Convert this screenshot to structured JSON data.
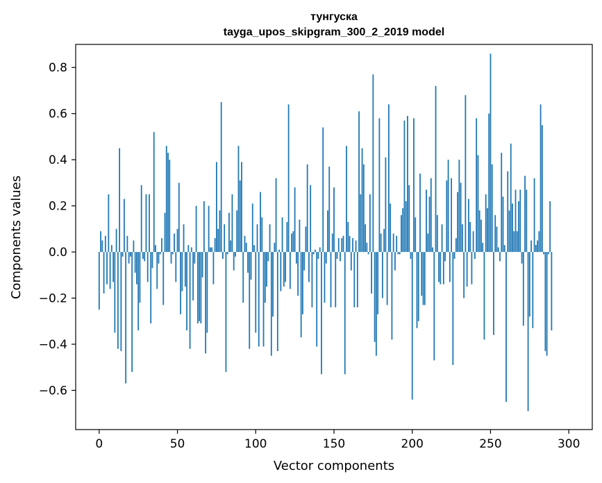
{
  "chart_data": {
    "type": "bar",
    "title": "тунгуска",
    "subtitle": "tayga_upos_skipgram_300_2_2019 model",
    "xlabel": "Vector components",
    "ylabel": "Components values",
    "xlim": [
      -15,
      315
    ],
    "ylim": [
      -0.77,
      0.9
    ],
    "xticks": [
      0,
      50,
      100,
      150,
      200,
      250,
      300
    ],
    "xtick_labels": [
      "0",
      "50",
      "100",
      "150",
      "200",
      "250",
      "300"
    ],
    "yticks": [
      -0.6,
      -0.4,
      -0.2,
      0.0,
      0.2,
      0.4,
      0.6,
      0.8
    ],
    "ytick_labels": [
      "−0.6",
      "−0.4",
      "−0.2",
      "0.0",
      "0.2",
      "0.4",
      "0.6",
      "0.8"
    ],
    "grid": false,
    "bar_color": "#1f77b4",
    "series": [
      {
        "values": [
          -0.25,
          0.09,
          0.05,
          -0.18,
          0.07,
          -0.14,
          0.25,
          -0.16,
          0.03,
          -0.13,
          -0.35,
          0.1,
          -0.42,
          0.45,
          -0.43,
          -0.02,
          0.23,
          -0.57,
          0.07,
          -0.05,
          -0.02,
          -0.52,
          0.05,
          -0.09,
          -0.14,
          -0.34,
          -0.22,
          0.29,
          -0.03,
          -0.04,
          0.25,
          -0.13,
          0.25,
          -0.31,
          -0.07,
          0.52,
          0.03,
          -0.16,
          -0.05,
          -0.01,
          0.06,
          -0.23,
          0.17,
          0.46,
          0.43,
          0.4,
          -0.05,
          -0.01,
          0.08,
          -0.13,
          0.1,
          0.3,
          -0.27,
          -0.17,
          0.12,
          -0.15,
          -0.34,
          0.03,
          -0.42,
          0.02,
          -0.21,
          -0.05,
          0.2,
          -0.31,
          -0.3,
          -0.31,
          -0.11,
          0.22,
          -0.44,
          -0.35,
          0.2,
          0.02,
          0.02,
          -0.14,
          0.06,
          0.39,
          0.1,
          0.18,
          0.65,
          -0.03,
          0.12,
          -0.52,
          -0.01,
          0.17,
          0.05,
          0.25,
          -0.08,
          -0.02,
          0.18,
          0.46,
          0.31,
          0.39,
          -0.22,
          0.07,
          0.04,
          -0.09,
          -0.42,
          -0.12,
          0.21,
          0.03,
          -0.35,
          0.12,
          -0.41,
          0.26,
          0.15,
          -0.41,
          -0.22,
          -0.15,
          -0.04,
          0.12,
          -0.45,
          -0.28,
          0.04,
          0.32,
          -0.43,
          0.01,
          -0.17,
          0.15,
          -0.15,
          -0.13,
          0.13,
          0.64,
          -0.16,
          0.08,
          0.09,
          0.28,
          -0.05,
          -0.19,
          0.14,
          -0.37,
          -0.27,
          -0.08,
          0.11,
          0.38,
          -0.13,
          0.29,
          -0.24,
          -0.01,
          0.01,
          -0.41,
          -0.03,
          0.02,
          -0.53,
          0.54,
          -0.22,
          -0.05,
          0.18,
          0.37,
          -0.24,
          0.08,
          0.28,
          -0.24,
          -0.03,
          0.06,
          -0.04,
          0.06,
          0.07,
          -0.53,
          0.46,
          0.13,
          0.07,
          -0.08,
          0.06,
          -0.24,
          0.05,
          -0.24,
          0.61,
          0.25,
          0.45,
          0.38,
          0.12,
          0.04,
          -0.01,
          0.25,
          -0.18,
          0.77,
          -0.39,
          -0.45,
          -0.27,
          0.58,
          0.08,
          -0.2,
          0.1,
          0.41,
          -0.23,
          0.64,
          0.21,
          -0.38,
          0.08,
          -0.08,
          0.07,
          -0.01,
          -0.01,
          0.16,
          0.19,
          0.57,
          0.22,
          0.59,
          0.29,
          -0.03,
          -0.64,
          0.58,
          0.15,
          -0.33,
          -0.3,
          0.34,
          -0.19,
          -0.23,
          -0.23,
          0.27,
          0.08,
          0.24,
          0.32,
          0.02,
          -0.47,
          0.72,
          0.16,
          -0.13,
          -0.14,
          0.12,
          -0.14,
          -0.04,
          0.31,
          0.4,
          -0.13,
          0.32,
          -0.49,
          -0.03,
          0.06,
          0.26,
          0.4,
          0.3,
          0.12,
          -0.2,
          0.68,
          -0.15,
          0.23,
          0.13,
          -0.14,
          0.09,
          -0.03,
          0.58,
          0.42,
          0.18,
          0.14,
          0.04,
          -0.38,
          0.25,
          0.19,
          0.6,
          0.86,
          0.38,
          -0.36,
          0.16,
          0.11,
          0.02,
          -0.04,
          0.43,
          0.24,
          0.03,
          -0.65,
          0.35,
          0.18,
          0.47,
          0.21,
          0.09,
          0.27,
          0.09,
          0.22,
          0.27,
          -0.05,
          -0.32,
          0.33,
          0.27,
          -0.69,
          -0.28,
          0.05,
          -0.33,
          0.32,
          0.03,
          0.05,
          0.09,
          0.64,
          0.55,
          -0.01,
          -0.43,
          -0.45,
          -0.01,
          0.22,
          -0.34
        ]
      }
    ]
  }
}
